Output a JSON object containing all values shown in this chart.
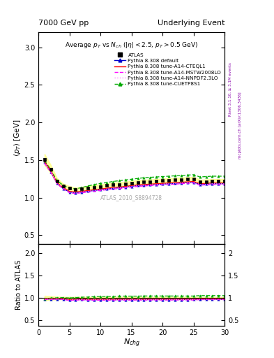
{
  "title_left": "7000 GeV pp",
  "title_right": "Underlying Event",
  "plot_title": "Average $p_T$ vs $N_{ch}$ ($|\\eta| < 2.5$, $p_T > 0.5$ GeV)",
  "ylabel_main": "$\\langle p_T \\rangle$ [GeV]",
  "ylabel_ratio": "Ratio to ATLAS",
  "xlabel": "$N_{chg}$",
  "ylim_main": [
    0.38,
    3.2
  ],
  "ylim_ratio": [
    0.38,
    2.2
  ],
  "xlim": [
    0,
    30
  ],
  "right_label_top": "Rivet 3.1.10, ≥ 3.1M events",
  "right_label_bot": "mcplots.cern.ch [arXiv:1306.3436]",
  "watermark": "ATLAS_2010_S8894728",
  "nch": [
    1,
    2,
    3,
    4,
    5,
    6,
    7,
    8,
    9,
    10,
    11,
    12,
    13,
    14,
    15,
    16,
    17,
    18,
    19,
    20,
    21,
    22,
    23,
    24,
    25,
    26,
    27,
    28,
    29,
    30
  ],
  "atlas_y": [
    1.505,
    1.38,
    1.22,
    1.155,
    1.125,
    1.105,
    1.115,
    1.13,
    1.14,
    1.15,
    1.16,
    1.17,
    1.175,
    1.185,
    1.195,
    1.205,
    1.21,
    1.215,
    1.22,
    1.225,
    1.23,
    1.235,
    1.24,
    1.245,
    1.25,
    1.21,
    1.215,
    1.22,
    1.22,
    1.22
  ],
  "atlas_err": [
    0.025,
    0.018,
    0.013,
    0.01,
    0.009,
    0.009,
    0.009,
    0.009,
    0.009,
    0.009,
    0.009,
    0.009,
    0.009,
    0.009,
    0.009,
    0.009,
    0.009,
    0.009,
    0.009,
    0.009,
    0.009,
    0.009,
    0.009,
    0.009,
    0.009,
    0.009,
    0.009,
    0.009,
    0.009,
    0.009
  ],
  "default_y": [
    1.47,
    1.345,
    1.19,
    1.12,
    1.075,
    1.065,
    1.075,
    1.085,
    1.095,
    1.105,
    1.115,
    1.125,
    1.13,
    1.14,
    1.15,
    1.16,
    1.165,
    1.17,
    1.175,
    1.18,
    1.185,
    1.19,
    1.195,
    1.2,
    1.205,
    1.175,
    1.18,
    1.185,
    1.185,
    1.185
  ],
  "cteql1_y": [
    1.48,
    1.355,
    1.2,
    1.135,
    1.085,
    1.075,
    1.085,
    1.095,
    1.105,
    1.115,
    1.125,
    1.135,
    1.14,
    1.15,
    1.16,
    1.17,
    1.175,
    1.18,
    1.185,
    1.19,
    1.195,
    1.2,
    1.205,
    1.21,
    1.215,
    1.185,
    1.19,
    1.195,
    1.195,
    1.195
  ],
  "mstw_y": [
    1.455,
    1.335,
    1.185,
    1.115,
    1.065,
    1.055,
    1.065,
    1.075,
    1.085,
    1.095,
    1.105,
    1.115,
    1.12,
    1.13,
    1.14,
    1.15,
    1.155,
    1.16,
    1.165,
    1.17,
    1.175,
    1.18,
    1.185,
    1.19,
    1.195,
    1.165,
    1.17,
    1.175,
    1.175,
    1.175
  ],
  "nnpdf_y": [
    1.465,
    1.345,
    1.195,
    1.125,
    1.075,
    1.065,
    1.075,
    1.085,
    1.095,
    1.105,
    1.115,
    1.125,
    1.13,
    1.14,
    1.15,
    1.16,
    1.165,
    1.17,
    1.175,
    1.18,
    1.185,
    1.19,
    1.195,
    1.2,
    1.205,
    1.175,
    1.18,
    1.185,
    1.185,
    1.185
  ],
  "cuetp_y": [
    1.49,
    1.375,
    1.225,
    1.165,
    1.125,
    1.115,
    1.135,
    1.155,
    1.175,
    1.19,
    1.2,
    1.215,
    1.225,
    1.235,
    1.245,
    1.255,
    1.265,
    1.27,
    1.275,
    1.28,
    1.285,
    1.29,
    1.295,
    1.3,
    1.305,
    1.275,
    1.28,
    1.285,
    1.285,
    1.285
  ],
  "atlas_color": "#000000",
  "default_color": "#0000cc",
  "cteql1_color": "#ff0000",
  "mstw_color": "#ff00ff",
  "nnpdf_color": "#ff88ff",
  "cuetp_color": "#00aa00",
  "atlas_band_color": "#ffff88"
}
